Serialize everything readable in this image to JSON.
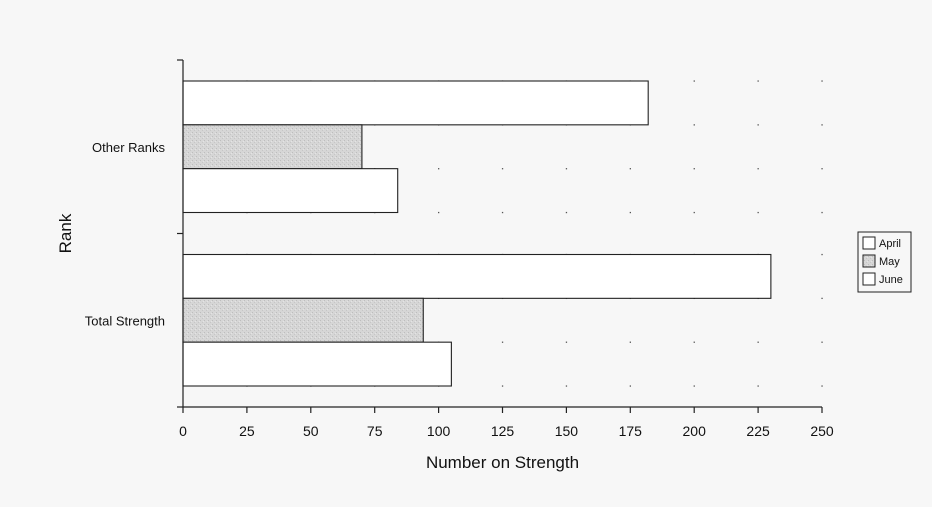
{
  "chart_data": {
    "type": "bar",
    "orientation": "horizontal",
    "categories": [
      "Other Ranks",
      "Total Strength"
    ],
    "series": [
      {
        "name": "April",
        "values": [
          182,
          230
        ],
        "fill": "#ffffff"
      },
      {
        "name": "May",
        "values": [
          70,
          94
        ],
        "fill": "#d6d6d6"
      },
      {
        "name": "June",
        "values": [
          84,
          105
        ],
        "fill": "#ffffff"
      }
    ],
    "xlabel": "Number on Strength",
    "ylabel": "Rank",
    "xlim": [
      0,
      250
    ],
    "xticks": [
      "0",
      "25",
      "50",
      "75",
      "100",
      "125",
      "150",
      "175",
      "200",
      "225",
      "250"
    ],
    "grid": "dotted",
    "legend_position": "right"
  }
}
